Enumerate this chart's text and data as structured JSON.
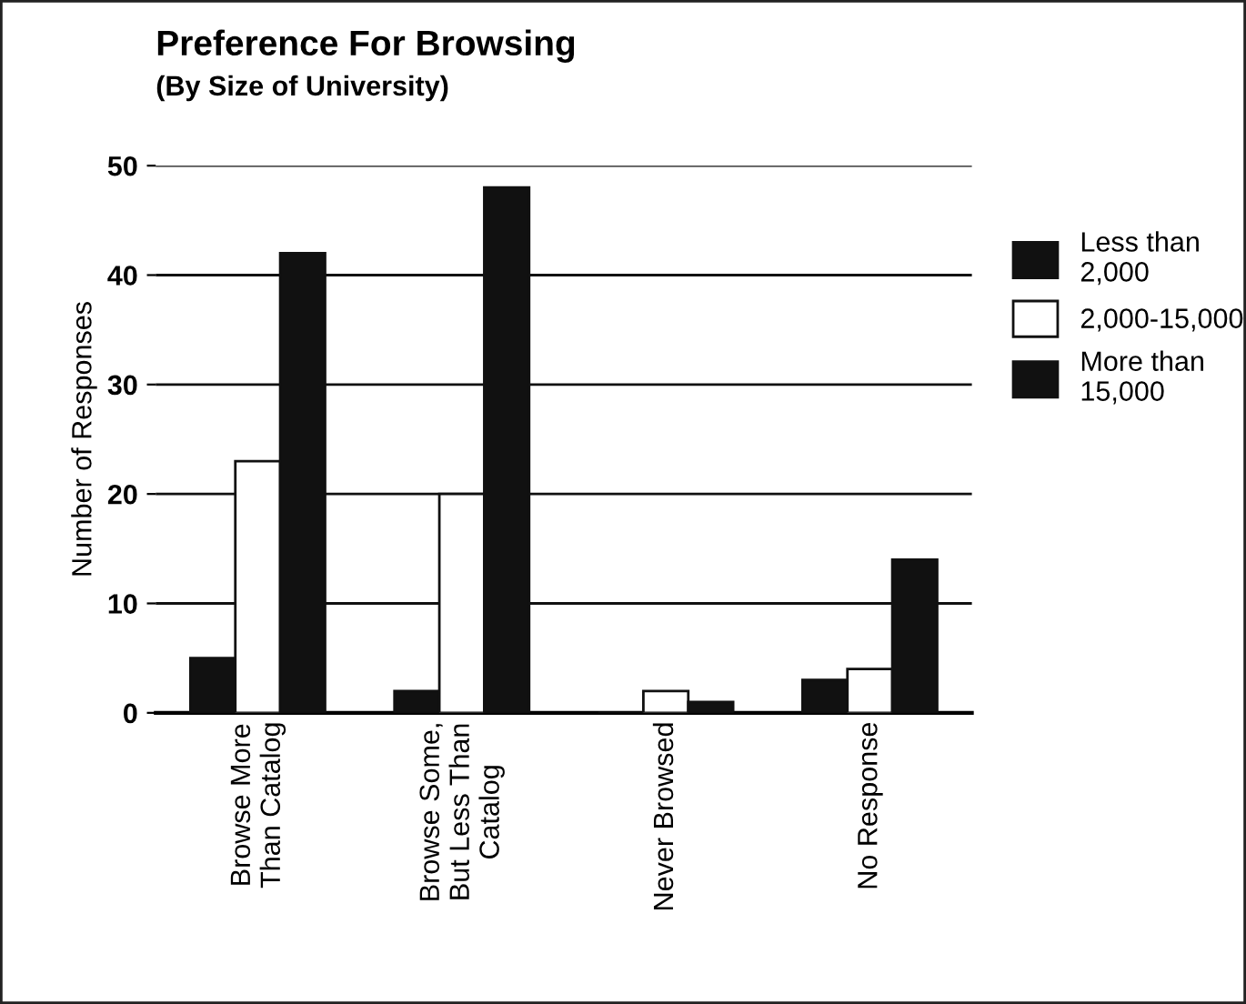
{
  "chart_data": {
    "type": "bar",
    "title": "Preference For Browsing",
    "subtitle": "(By Size of University)",
    "ylabel": "Number of Responses",
    "categories": [
      "Browse More\nThan Catalog",
      "Browse Some,\nBut Less Than\nCatalog",
      "Never Browsed",
      "No Response"
    ],
    "series": [
      {
        "name": "Less than\n2,000",
        "color": "#111111",
        "values": [
          5,
          2,
          0,
          3
        ]
      },
      {
        "name": "2,000-15,000",
        "color": "#ffffff",
        "values": [
          23,
          20,
          2,
          4
        ]
      },
      {
        "name": "More than\n15,000",
        "color": "#111111",
        "values": [
          42,
          48,
          1,
          14
        ]
      }
    ],
    "ylim": [
      0,
      50
    ],
    "yticks": [
      0,
      10,
      20,
      30,
      40,
      50
    ],
    "grid": "y",
    "legend": "right"
  }
}
